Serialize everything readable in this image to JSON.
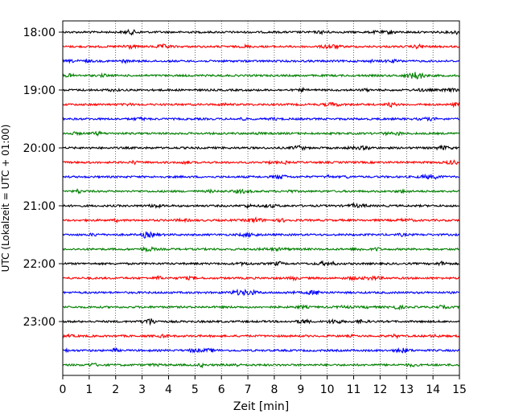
{
  "chart_data": {
    "type": "line",
    "title": "",
    "xlabel": "Zeit  [min]",
    "ylabel": "UTC (Lokalzeit = UTC + 01:00)",
    "xlim": [
      0,
      15
    ],
    "x_ticks": [
      "0",
      "1",
      "2",
      "3",
      "4",
      "5",
      "6",
      "7",
      "8",
      "9",
      "10",
      "11",
      "12",
      "13",
      "14",
      "15"
    ],
    "y_ticks": [
      "18:00",
      "19:00",
      "20:00",
      "21:00",
      "22:00",
      "23:00"
    ],
    "grid": "vertical dotted lines at each minute",
    "trace_start_times": [
      "18:00",
      "18:15",
      "18:30",
      "18:45",
      "19:00",
      "19:15",
      "19:30",
      "19:45",
      "20:00",
      "20:15",
      "20:30",
      "20:45",
      "21:00",
      "21:15",
      "21:30",
      "21:45",
      "22:00",
      "22:15",
      "22:30",
      "22:45",
      "23:00",
      "23:15",
      "23:30",
      "23:45"
    ],
    "trace_colors": [
      "#000000",
      "#ff0000",
      "#0000ff",
      "#008000"
    ],
    "trace_duration_min": 15
  }
}
